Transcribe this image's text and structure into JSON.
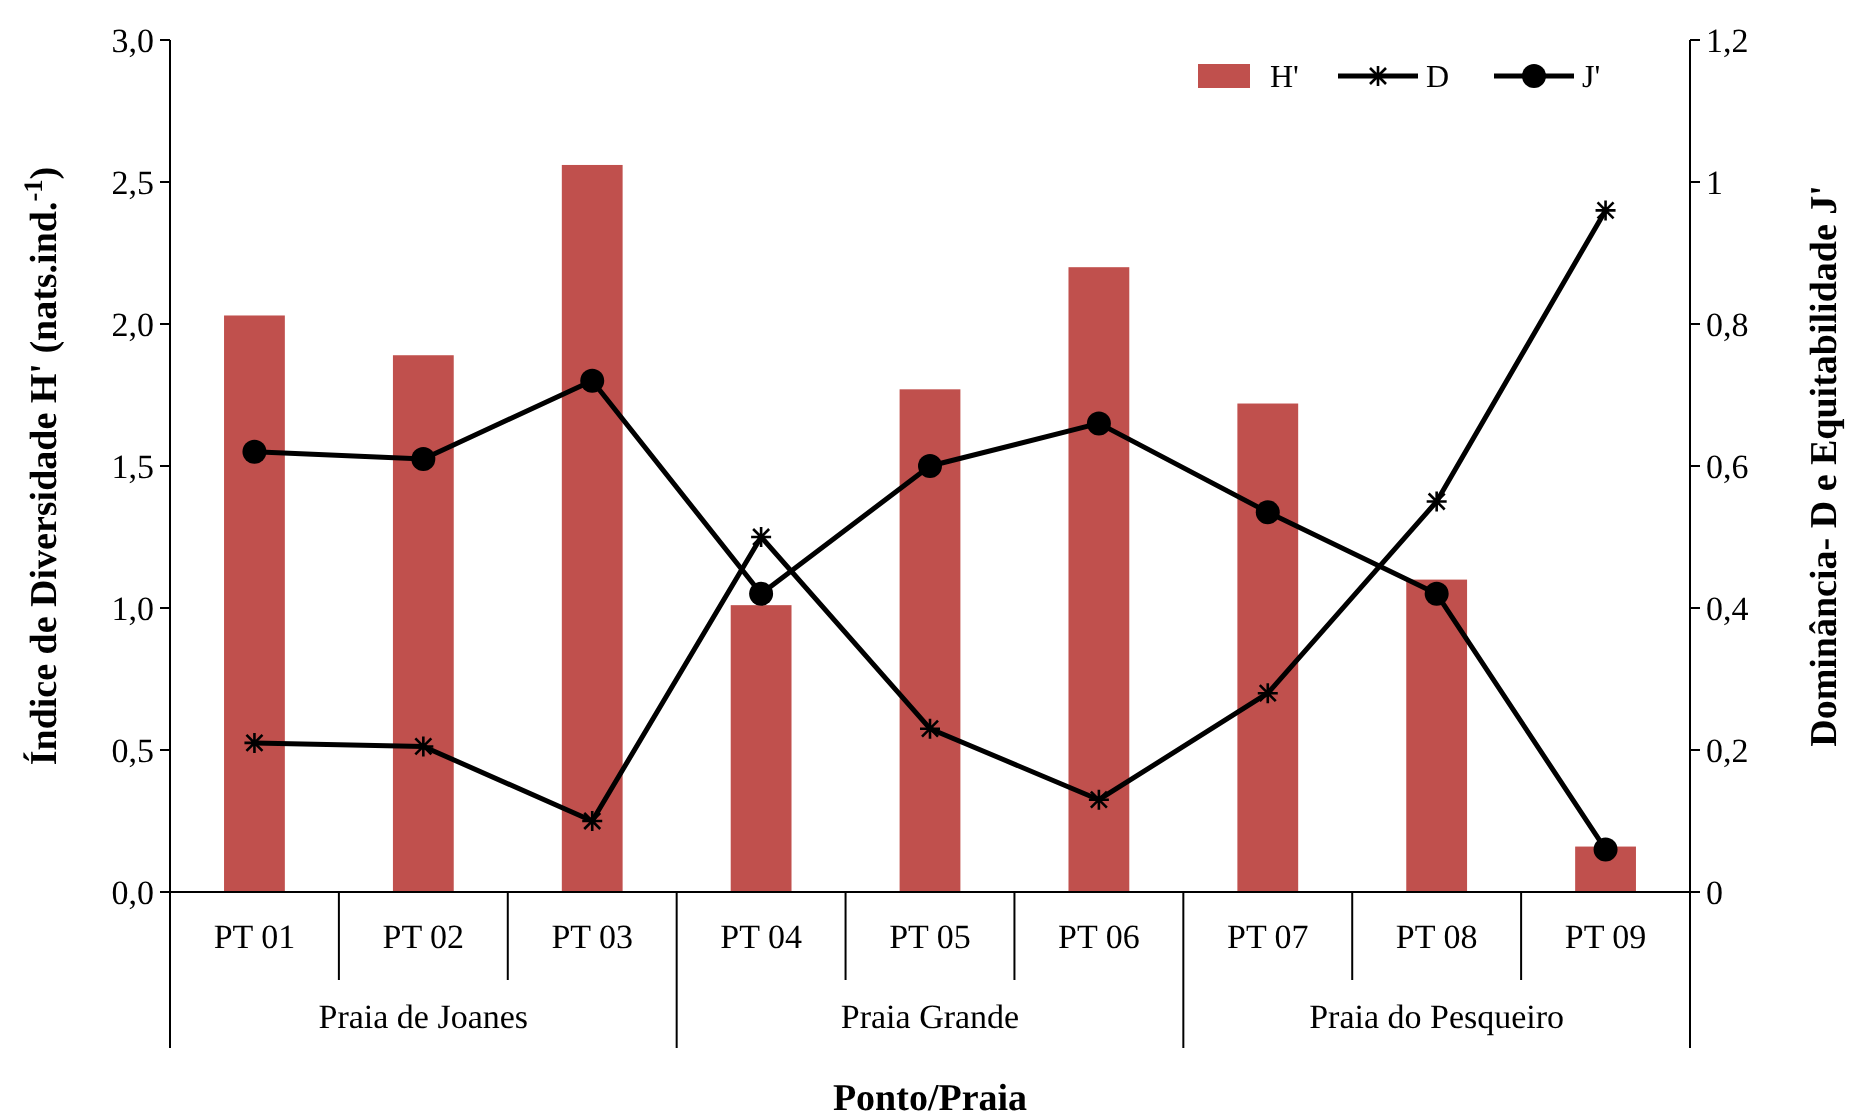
{
  "chart_data": {
    "type": "bar",
    "xlabel": "Ponto/Praia",
    "ylabel": "Índice de Diversidade H' (nats.ind.$^{-1}$)",
    "y2label": "Dominância- D e Equitabilidade J'",
    "categories": [
      "PT 01",
      "PT 02",
      "PT 03",
      "PT 04",
      "PT 05",
      "PT 06",
      "PT 07",
      "PT 08",
      "PT 09"
    ],
    "series": [
      {
        "name": "H'",
        "color": "#c0504d",
        "values": [
          2.03,
          1.89,
          2.56,
          1.01,
          1.77,
          2.2,
          1.72,
          1.1,
          0.16
        ]
      },
      {
        "name": "D",
        "type": "line",
        "axis": "y2",
        "marker": "cross",
        "color": "#000000",
        "values": [
          0.21,
          0.205,
          0.1,
          0.5,
          0.23,
          0.13,
          0.28,
          0.55,
          0.96
        ]
      },
      {
        "name": "J'",
        "type": "line",
        "axis": "y2",
        "marker": "circle",
        "color": "#000000",
        "values": [
          0.62,
          0.61,
          0.72,
          0.42,
          0.6,
          0.66,
          0.535,
          0.42,
          0.06
        ]
      }
    ],
    "ylim": [
      0,
      3
    ],
    "yticks": [
      {
        "value": 0,
        "label": "0,0"
      },
      {
        "value": 0.5,
        "label": "0,5"
      },
      {
        "value": 1,
        "label": "1,0"
      },
      {
        "value": 1.5,
        "label": "1,5"
      },
      {
        "value": 2,
        "label": "2,0"
      },
      {
        "value": 2.5,
        "label": "2,5"
      },
      {
        "value": 3,
        "label": "3,0"
      }
    ],
    "y2lim": [
      0,
      1.2
    ],
    "y2ticks": [
      0,
      {
        "value": 0.2,
        "label": "0,2"
      },
      {
        "value": 0.4,
        "label": "0,4"
      },
      {
        "value": 0.6,
        "label": "0,6"
      },
      {
        "value": 0.8,
        "label": "0,8"
      },
      1,
      {
        "value": 1.2,
        "label": "1,2"
      }
    ],
    "annotations": [
      "Praia de Joanes",
      "Praia Grande",
      "Praia do Pesqueiro"
    ],
    "legend": "top right",
    "grid": false
  }
}
